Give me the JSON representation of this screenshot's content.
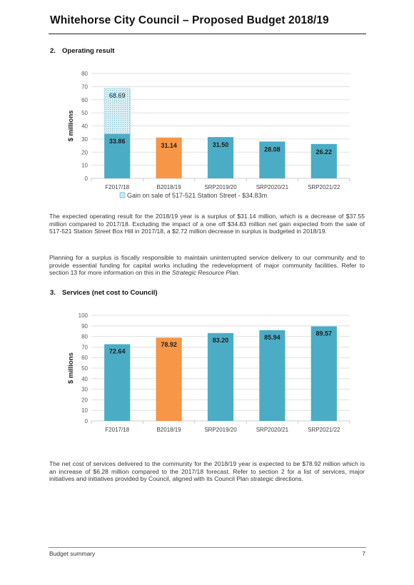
{
  "header": {
    "title": "Whitehorse City Council – Proposed Budget 2018/19"
  },
  "section1": {
    "number": "2.",
    "heading": "Operating result",
    "paragraphs": [
      "The expected operating result for the 2018/19 year is a surplus of $31.14 million, which is a decrease of $37.55 million compared to 2017/18. Excluding the impact of a one off $34.83 million net gain expected from the sale of 517-521 Station Street Box Hill in 2017/18, a $2.72 million decrease in surplus is budgeted in 2018/19.",
      "Planning for a surplus is fiscally responsible to maintain uninterrupted service delivery to our community and to provide essential funding for capital works including the redevelopment of major community facilities. Refer to section 13 for more information on this in the "
    ],
    "paragraph2_italic": "Strategic Resource Plan",
    "paragraph2_end": "."
  },
  "section2": {
    "number": "3.",
    "heading": "Services (net cost to Council)",
    "paragraphs": [
      "The net cost of services delivered to the community for the 2018/19 year is expected to be $78.92 million which is an increase of $6.28 million compared to the 2017/18 forecast. Refer to section 2 for a list of services, major initiatives and initiatives provided by Council, aligned with its Council Plan strategic directions."
    ]
  },
  "footer": {
    "left": "Budget summary",
    "page": "7"
  },
  "colors": {
    "teal": "#4bacc6",
    "orange": "#f79646",
    "gain_fill": "#dbeef3",
    "gain_border": "#4bacc6",
    "grid": "#d9d9d9"
  },
  "chart_data": [
    {
      "type": "bar",
      "title": "",
      "ylabel": "$ millions",
      "xlabel": "",
      "ylim": [
        0,
        80
      ],
      "ytick_step": 10,
      "categories": [
        "F2017/18",
        "B2018/19",
        "SRP2019/20",
        "SRP2020/21",
        "SRP2021/22"
      ],
      "values": [
        33.86,
        31.14,
        31.5,
        28.08,
        26.22
      ],
      "value_labels": [
        "33.86",
        "31.14",
        "31.50",
        "28.08",
        "26.22"
      ],
      "highlight_index": 1,
      "stacked_extra": {
        "index": 0,
        "total": 68.69,
        "total_label": "68.69",
        "name": "Gain on sale of 517-521 Station Street - $34.83m"
      },
      "legend": "bottom",
      "grid": true
    },
    {
      "type": "bar",
      "title": "",
      "ylabel": "$ millions",
      "xlabel": "",
      "ylim": [
        0,
        100
      ],
      "ytick_step": 10,
      "categories": [
        "F2017/18",
        "B2018/19",
        "SRP2019/20",
        "SRP2020/21",
        "SRP2021/22"
      ],
      "values": [
        72.64,
        78.92,
        83.2,
        85.94,
        89.57
      ],
      "value_labels": [
        "72.64",
        "78.92",
        "83.20",
        "85.94",
        "89.57"
      ],
      "highlight_index": 1,
      "grid": true
    }
  ]
}
